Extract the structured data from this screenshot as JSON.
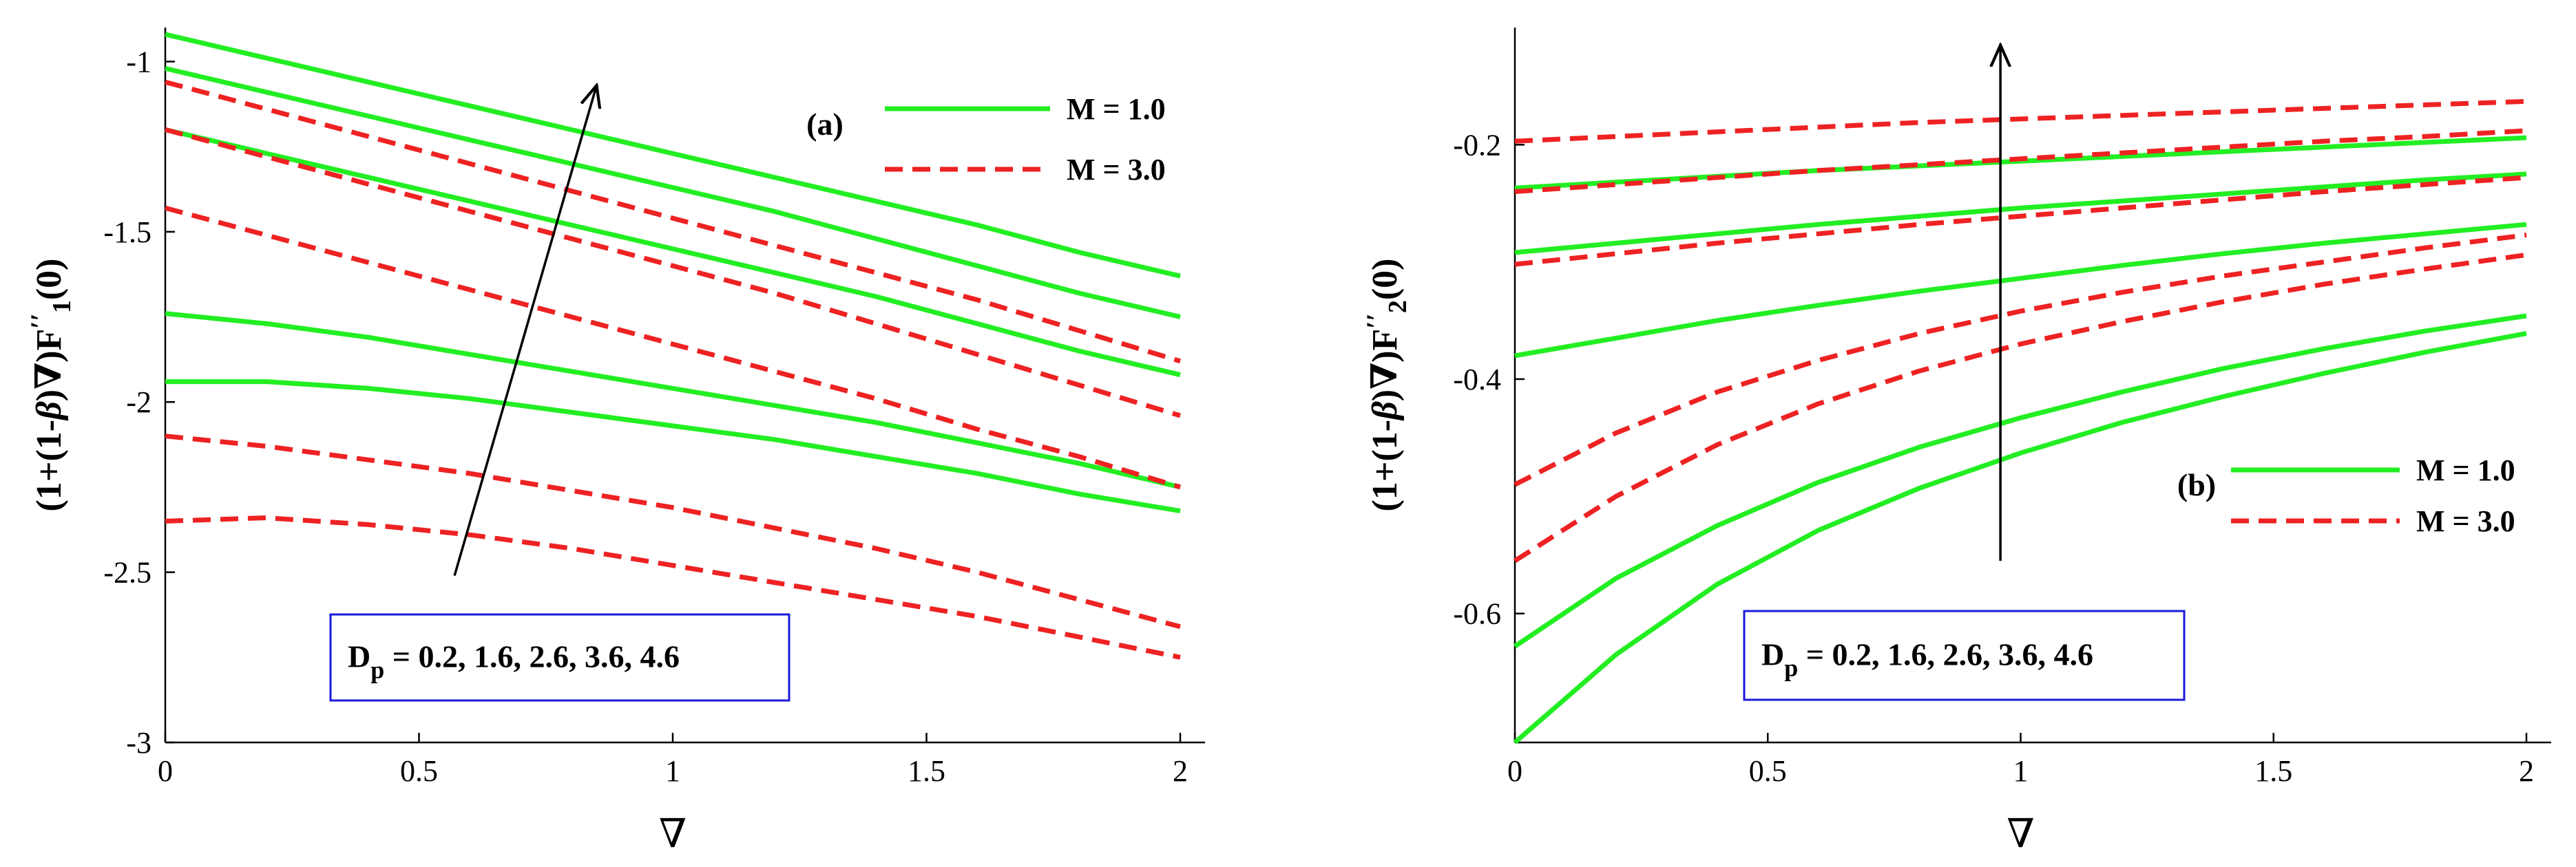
{
  "chart_data": [
    {
      "type": "line",
      "panel_label": "(a)",
      "xlabel": "∇",
      "ylabel": "(1+(1-β)∇)F1''(0)",
      "ylabel_parts": {
        "pre": "(1+(1-",
        "beta": "β",
        "mid": ")∇)F",
        "prime": "′′",
        "sub": "1",
        "post": "(0)"
      },
      "xlim": [
        0,
        2
      ],
      "ylim": [
        -3,
        -0.9
      ],
      "xticks": [
        0,
        0.5,
        1,
        1.5,
        2
      ],
      "xtick_labels": [
        "0",
        "0.5",
        "1",
        "1.5",
        "2"
      ],
      "yticks": [
        -3,
        -2.5,
        -2,
        -1.5,
        -1
      ],
      "ytick_labels": [
        "-3",
        "-2.5",
        "-2",
        "-1.5",
        "-1"
      ],
      "x": [
        0,
        0.2,
        0.4,
        0.6,
        0.8,
        1.0,
        1.2,
        1.4,
        1.6,
        1.8,
        2.0
      ],
      "series": [
        {
          "name": "M = 1.0",
          "style": "solid",
          "color": "#22ee22",
          "values": [
            -0.92,
            -0.99,
            -1.06,
            -1.13,
            -1.2,
            -1.27,
            -1.34,
            -1.41,
            -1.48,
            -1.56,
            -1.63
          ]
        },
        {
          "name": "M = 1.0",
          "style": "solid",
          "color": "#22ee22",
          "values": [
            -1.02,
            -1.09,
            -1.16,
            -1.23,
            -1.3,
            -1.37,
            -1.44,
            -1.52,
            -1.6,
            -1.68,
            -1.75
          ]
        },
        {
          "name": "M = 1.0",
          "style": "solid",
          "color": "#22ee22",
          "values": [
            -1.2,
            -1.27,
            -1.34,
            -1.41,
            -1.48,
            -1.55,
            -1.62,
            -1.69,
            -1.77,
            -1.85,
            -1.92
          ]
        },
        {
          "name": "M = 1.0",
          "style": "solid",
          "color": "#22ee22",
          "values": [
            -1.74,
            -1.77,
            -1.81,
            -1.86,
            -1.91,
            -1.96,
            -2.01,
            -2.06,
            -2.12,
            -2.18,
            -2.25
          ]
        },
        {
          "name": "M = 1.0",
          "style": "solid",
          "color": "#22ee22",
          "values": [
            -1.94,
            -1.94,
            -1.96,
            -1.99,
            -2.03,
            -2.07,
            -2.11,
            -2.16,
            -2.21,
            -2.27,
            -2.32
          ]
        },
        {
          "name": "M = 3.0",
          "style": "dashed",
          "color": "#ee2222",
          "values": [
            -1.06,
            -1.14,
            -1.22,
            -1.3,
            -1.38,
            -1.46,
            -1.54,
            -1.62,
            -1.7,
            -1.79,
            -1.88
          ]
        },
        {
          "name": "M = 3.0",
          "style": "dashed",
          "color": "#ee2222",
          "values": [
            -1.2,
            -1.28,
            -1.36,
            -1.44,
            -1.52,
            -1.6,
            -1.68,
            -1.77,
            -1.86,
            -1.95,
            -2.04
          ]
        },
        {
          "name": "M = 3.0",
          "style": "dashed",
          "color": "#ee2222",
          "values": [
            -1.43,
            -1.51,
            -1.59,
            -1.67,
            -1.75,
            -1.83,
            -1.91,
            -1.99,
            -2.08,
            -2.16,
            -2.25
          ]
        },
        {
          "name": "M = 3.0",
          "style": "dashed",
          "color": "#ee2222",
          "values": [
            -2.1,
            -2.13,
            -2.17,
            -2.21,
            -2.26,
            -2.31,
            -2.37,
            -2.43,
            -2.5,
            -2.58,
            -2.66
          ]
        },
        {
          "name": "M = 3.0",
          "style": "dashed",
          "color": "#ee2222",
          "values": [
            -2.35,
            -2.34,
            -2.36,
            -2.39,
            -2.43,
            -2.48,
            -2.53,
            -2.58,
            -2.63,
            -2.69,
            -2.75
          ]
        }
      ],
      "legend": [
        {
          "label": "M = 1.0",
          "style": "solid",
          "color": "#22ee22"
        },
        {
          "label": "M = 3.0",
          "style": "dashed",
          "color": "#ee2222"
        }
      ],
      "legend_position": "top-right",
      "annotation": {
        "prefix": "D",
        "sub": "p",
        "rest": " = 0.2, 1.6, 2.6, 3.6, 4.6",
        "box_color": "#1a1adb"
      },
      "arrow": {
        "from": [
          0.57,
          -2.51
        ],
        "to": [
          0.85,
          -1.07
        ]
      }
    },
    {
      "type": "line",
      "panel_label": "(b)",
      "xlabel": "∇",
      "ylabel": "(1+(1-β)∇)F2''(0)",
      "ylabel_parts": {
        "pre": "(1+(1-",
        "beta": "β",
        "mid": ")∇)F",
        "prime": "′′",
        "sub": "2",
        "post": "(0)"
      },
      "xlim": [
        0,
        2
      ],
      "ylim": [
        -0.71,
        -0.1
      ],
      "xticks": [
        0,
        0.5,
        1,
        1.5,
        2
      ],
      "xtick_labels": [
        "0",
        "0.5",
        "1",
        "1.5",
        "2"
      ],
      "yticks": [
        -0.6,
        -0.4,
        -0.2
      ],
      "ytick_labels": [
        "-0.6",
        "-0.4",
        "-0.2"
      ],
      "x": [
        0,
        0.2,
        0.4,
        0.6,
        0.8,
        1.0,
        1.2,
        1.4,
        1.6,
        1.8,
        2.0
      ],
      "series": [
        {
          "name": "M = 1.0",
          "style": "solid",
          "color": "#22ee22",
          "values": [
            -0.237,
            -0.232,
            -0.227,
            -0.222,
            -0.218,
            -0.214,
            -0.21,
            -0.206,
            -0.202,
            -0.198,
            -0.194
          ]
        },
        {
          "name": "M = 1.0",
          "style": "solid",
          "color": "#22ee22",
          "values": [
            -0.292,
            -0.284,
            -0.276,
            -0.268,
            -0.261,
            -0.254,
            -0.248,
            -0.242,
            -0.236,
            -0.23,
            -0.225
          ]
        },
        {
          "name": "M = 1.0",
          "style": "solid",
          "color": "#22ee22",
          "values": [
            -0.38,
            -0.365,
            -0.35,
            -0.337,
            -0.325,
            -0.314,
            -0.303,
            -0.293,
            -0.284,
            -0.276,
            -0.268
          ]
        },
        {
          "name": "M = 1.0",
          "style": "solid",
          "color": "#22ee22",
          "values": [
            -0.628,
            -0.57,
            -0.525,
            -0.488,
            -0.458,
            -0.433,
            -0.411,
            -0.391,
            -0.374,
            -0.359,
            -0.346
          ]
        },
        {
          "name": "M = 1.0",
          "style": "solid",
          "color": "#22ee22",
          "values": [
            -0.71,
            -0.635,
            -0.575,
            -0.529,
            -0.493,
            -0.463,
            -0.437,
            -0.415,
            -0.395,
            -0.377,
            -0.361
          ]
        },
        {
          "name": "M = 3.0",
          "style": "dashed",
          "color": "#ee2222",
          "values": [
            -0.197,
            -0.193,
            -0.189,
            -0.185,
            -0.181,
            -0.178,
            -0.175,
            -0.172,
            -0.169,
            -0.166,
            -0.163
          ]
        },
        {
          "name": "M = 3.0",
          "style": "dashed",
          "color": "#ee2222",
          "values": [
            -0.24,
            -0.234,
            -0.228,
            -0.222,
            -0.217,
            -0.212,
            -0.207,
            -0.202,
            -0.197,
            -0.193,
            -0.188
          ]
        },
        {
          "name": "M = 3.0",
          "style": "dashed",
          "color": "#ee2222",
          "values": [
            -0.302,
            -0.293,
            -0.284,
            -0.276,
            -0.268,
            -0.261,
            -0.254,
            -0.247,
            -0.24,
            -0.234,
            -0.228
          ]
        },
        {
          "name": "M = 3.0",
          "style": "dashed",
          "color": "#ee2222",
          "values": [
            -0.49,
            -0.446,
            -0.411,
            -0.384,
            -0.361,
            -0.342,
            -0.326,
            -0.312,
            -0.3,
            -0.288,
            -0.277
          ]
        },
        {
          "name": "M = 3.0",
          "style": "dashed",
          "color": "#ee2222",
          "values": [
            -0.555,
            -0.5,
            -0.456,
            -0.421,
            -0.393,
            -0.37,
            -0.351,
            -0.334,
            -0.319,
            -0.306,
            -0.294
          ]
        }
      ],
      "legend": [
        {
          "label": "M = 1.0",
          "style": "solid",
          "color": "#22ee22"
        },
        {
          "label": "M = 3.0",
          "style": "dashed",
          "color": "#ee2222"
        }
      ],
      "legend_position": "right",
      "annotation": {
        "prefix": "D",
        "sub": "p",
        "rest": " = 0.2, 1.6, 2.6, 3.6, 4.6",
        "box_color": "#1a1adb"
      },
      "arrow": {
        "from": [
          0.96,
          -0.555
        ],
        "to": [
          0.96,
          -0.115
        ]
      }
    }
  ]
}
